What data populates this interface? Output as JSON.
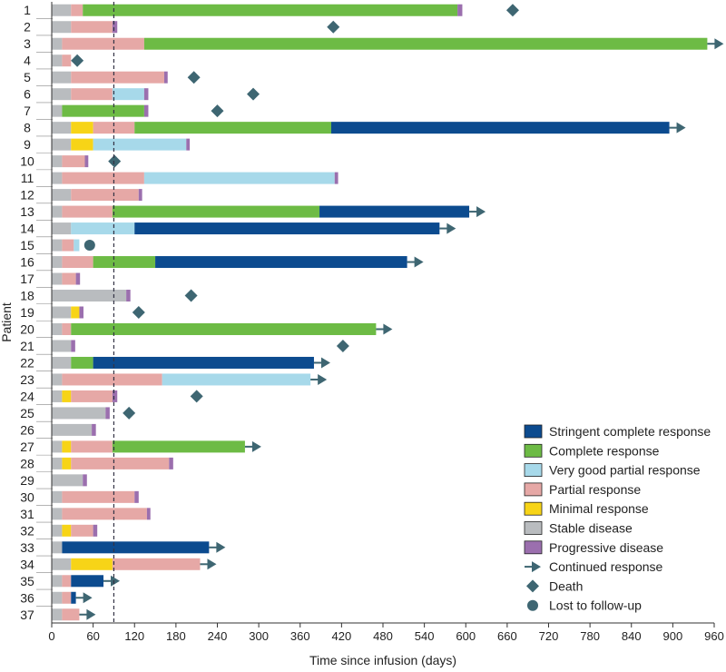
{
  "chart_data": {
    "type": "swimmer",
    "xlabel": "Time since infusion (days)",
    "ylabel": "Patient",
    "xlim": [
      0,
      960
    ],
    "xticks": [
      0,
      60,
      120,
      180,
      240,
      300,
      360,
      420,
      480,
      540,
      600,
      660,
      720,
      780,
      840,
      900,
      960
    ],
    "reference_line_day": 90,
    "colors": {
      "scr": "#0c4b8f",
      "cr": "#6dbb45",
      "vgpr": "#a7d9ea",
      "pr": "#e6a8a6",
      "mr": "#f7d417",
      "sd": "#b9bcbf",
      "pd": "#9b6fae",
      "marker": "#3e6672"
    },
    "legend": [
      {
        "key": "scr",
        "label": "Stringent complete response"
      },
      {
        "key": "cr",
        "label": "Complete response"
      },
      {
        "key": "vgpr",
        "label": "Very good partial response"
      },
      {
        "key": "pr",
        "label": "Partial response"
      },
      {
        "key": "mr",
        "label": "Minimal response"
      },
      {
        "key": "sd",
        "label": "Stable disease"
      },
      {
        "key": "pd",
        "label": "Progressive disease"
      },
      {
        "key": "arrow",
        "label": "Continued response"
      },
      {
        "key": "death",
        "label": "Death"
      },
      {
        "key": "lost",
        "label": "Lost to follow-up"
      }
    ],
    "patients": [
      {
        "id": "1",
        "segments": [
          [
            "sd",
            0,
            28
          ],
          [
            "pr",
            28,
            45
          ],
          [
            "cr",
            45,
            588
          ],
          [
            "pd",
            588,
            595
          ]
        ],
        "death": 668
      },
      {
        "id": "2",
        "segments": [
          [
            "sd",
            0,
            28
          ],
          [
            "pr",
            28,
            88
          ],
          [
            "pd",
            88,
            95
          ]
        ],
        "death": 408
      },
      {
        "id": "3",
        "segments": [
          [
            "sd",
            0,
            15
          ],
          [
            "pr",
            15,
            134
          ],
          [
            "cr",
            134,
            950
          ]
        ],
        "arrow": true
      },
      {
        "id": "4",
        "segments": [
          [
            "sd",
            0,
            15
          ],
          [
            "pr",
            15,
            28
          ]
        ],
        "death": 37
      },
      {
        "id": "5",
        "segments": [
          [
            "sd",
            0,
            28
          ],
          [
            "pr",
            28,
            163
          ],
          [
            "pd",
            163,
            168
          ]
        ],
        "death": 206
      },
      {
        "id": "6",
        "segments": [
          [
            "sd",
            0,
            28
          ],
          [
            "pr",
            28,
            88
          ],
          [
            "vgpr",
            88,
            134
          ],
          [
            "pd",
            134,
            140
          ]
        ],
        "death": 292
      },
      {
        "id": "7",
        "segments": [
          [
            "sd",
            0,
            15
          ],
          [
            "cr",
            15,
            134
          ],
          [
            "pd",
            134,
            140
          ]
        ],
        "death": 240
      },
      {
        "id": "8",
        "segments": [
          [
            "sd",
            0,
            28
          ],
          [
            "mr",
            28,
            60
          ],
          [
            "pr",
            60,
            120
          ],
          [
            "cr",
            120,
            405
          ],
          [
            "scr",
            405,
            895
          ]
        ],
        "arrow": true
      },
      {
        "id": "9",
        "segments": [
          [
            "sd",
            0,
            28
          ],
          [
            "mr",
            28,
            60
          ],
          [
            "vgpr",
            60,
            195
          ],
          [
            "pd",
            195,
            200
          ]
        ]
      },
      {
        "id": "10",
        "segments": [
          [
            "sd",
            0,
            15
          ],
          [
            "pr",
            15,
            48
          ],
          [
            "pd",
            48,
            53
          ]
        ],
        "death": 91
      },
      {
        "id": "11",
        "segments": [
          [
            "sd",
            0,
            15
          ],
          [
            "pr",
            15,
            134
          ],
          [
            "vgpr",
            134,
            410
          ],
          [
            "pd",
            410,
            415
          ]
        ]
      },
      {
        "id": "12",
        "segments": [
          [
            "sd",
            0,
            28
          ],
          [
            "pr",
            28,
            126
          ],
          [
            "pd",
            126,
            131
          ]
        ]
      },
      {
        "id": "13",
        "segments": [
          [
            "sd",
            0,
            15
          ],
          [
            "pr",
            15,
            88
          ],
          [
            "cr",
            88,
            388
          ],
          [
            "scr",
            388,
            605
          ]
        ],
        "arrow": true
      },
      {
        "id": "14",
        "segments": [
          [
            "sd",
            0,
            28
          ],
          [
            "vgpr",
            28,
            120
          ],
          [
            "scr",
            120,
            562
          ]
        ],
        "arrow": true
      },
      {
        "id": "15",
        "segments": [
          [
            "sd",
            0,
            15
          ],
          [
            "pr",
            15,
            32
          ],
          [
            "vgpr",
            32,
            40
          ]
        ],
        "lost": 55
      },
      {
        "id": "16",
        "segments": [
          [
            "sd",
            0,
            15
          ],
          [
            "pr",
            15,
            60
          ],
          [
            "cr",
            60,
            150
          ],
          [
            "scr",
            150,
            515
          ]
        ],
        "arrow": true
      },
      {
        "id": "17",
        "segments": [
          [
            "sd",
            0,
            15
          ],
          [
            "pr",
            15,
            35
          ],
          [
            "pd",
            35,
            41
          ]
        ]
      },
      {
        "id": "18",
        "segments": [
          [
            "sd",
            0,
            108
          ],
          [
            "pd",
            108,
            114
          ]
        ],
        "death": 202
      },
      {
        "id": "19",
        "segments": [
          [
            "sd",
            0,
            28
          ],
          [
            "mr",
            28,
            40
          ],
          [
            "pd",
            40,
            46
          ]
        ],
        "death": 126
      },
      {
        "id": "20",
        "segments": [
          [
            "sd",
            0,
            15
          ],
          [
            "pr",
            15,
            28
          ],
          [
            "cr",
            28,
            470
          ]
        ],
        "arrow": true
      },
      {
        "id": "21",
        "segments": [
          [
            "sd",
            0,
            28
          ],
          [
            "pd",
            28,
            34
          ]
        ],
        "death": 422
      },
      {
        "id": "22",
        "segments": [
          [
            "sd",
            0,
            28
          ],
          [
            "cr",
            28,
            60
          ],
          [
            "scr",
            60,
            380
          ]
        ],
        "arrow": true
      },
      {
        "id": "23",
        "segments": [
          [
            "sd",
            0,
            15
          ],
          [
            "pr",
            15,
            160
          ],
          [
            "vgpr",
            160,
            375
          ]
        ],
        "arrow": true
      },
      {
        "id": "24",
        "segments": [
          [
            "sd",
            0,
            15
          ],
          [
            "mr",
            15,
            28
          ],
          [
            "pr",
            28,
            88
          ],
          [
            "pd",
            88,
            95
          ]
        ],
        "death": 210
      },
      {
        "id": "25",
        "segments": [
          [
            "sd",
            0,
            78
          ],
          [
            "pd",
            78,
            84
          ]
        ],
        "death": 112
      },
      {
        "id": "26",
        "segments": [
          [
            "sd",
            0,
            58
          ],
          [
            "pd",
            58,
            64
          ]
        ]
      },
      {
        "id": "27",
        "segments": [
          [
            "sd",
            0,
            15
          ],
          [
            "mr",
            15,
            28
          ],
          [
            "pr",
            28,
            88
          ],
          [
            "cr",
            88,
            280
          ]
        ],
        "arrow": true
      },
      {
        "id": "28",
        "segments": [
          [
            "sd",
            0,
            15
          ],
          [
            "mr",
            15,
            28
          ],
          [
            "pr",
            28,
            170
          ],
          [
            "pd",
            170,
            176
          ]
        ]
      },
      {
        "id": "29",
        "segments": [
          [
            "sd",
            0,
            45
          ],
          [
            "pd",
            45,
            51
          ]
        ]
      },
      {
        "id": "30",
        "segments": [
          [
            "sd",
            0,
            15
          ],
          [
            "pr",
            15,
            120
          ],
          [
            "pd",
            120,
            126
          ]
        ]
      },
      {
        "id": "31",
        "segments": [
          [
            "sd",
            0,
            15
          ],
          [
            "pr",
            15,
            138
          ],
          [
            "pd",
            138,
            143
          ]
        ]
      },
      {
        "id": "32",
        "segments": [
          [
            "sd",
            0,
            15
          ],
          [
            "mr",
            15,
            28
          ],
          [
            "pr",
            28,
            60
          ],
          [
            "pd",
            60,
            66
          ]
        ]
      },
      {
        "id": "33",
        "segments": [
          [
            "sd",
            0,
            15
          ],
          [
            "scr",
            15,
            228
          ]
        ],
        "arrow": true
      },
      {
        "id": "34",
        "segments": [
          [
            "sd",
            0,
            28
          ],
          [
            "mr",
            28,
            88
          ],
          [
            "pr",
            88,
            215
          ]
        ],
        "arrow": true
      },
      {
        "id": "35",
        "segments": [
          [
            "sd",
            0,
            15
          ],
          [
            "pr",
            15,
            28
          ],
          [
            "scr",
            28,
            75
          ]
        ],
        "arrow": true
      },
      {
        "id": "36",
        "segments": [
          [
            "sd",
            0,
            15
          ],
          [
            "pr",
            15,
            28
          ],
          [
            "scr",
            28,
            35
          ]
        ],
        "arrow": true
      },
      {
        "id": "37",
        "segments": [
          [
            "sd",
            0,
            15
          ],
          [
            "pr",
            15,
            40
          ]
        ],
        "arrow": true
      }
    ]
  }
}
